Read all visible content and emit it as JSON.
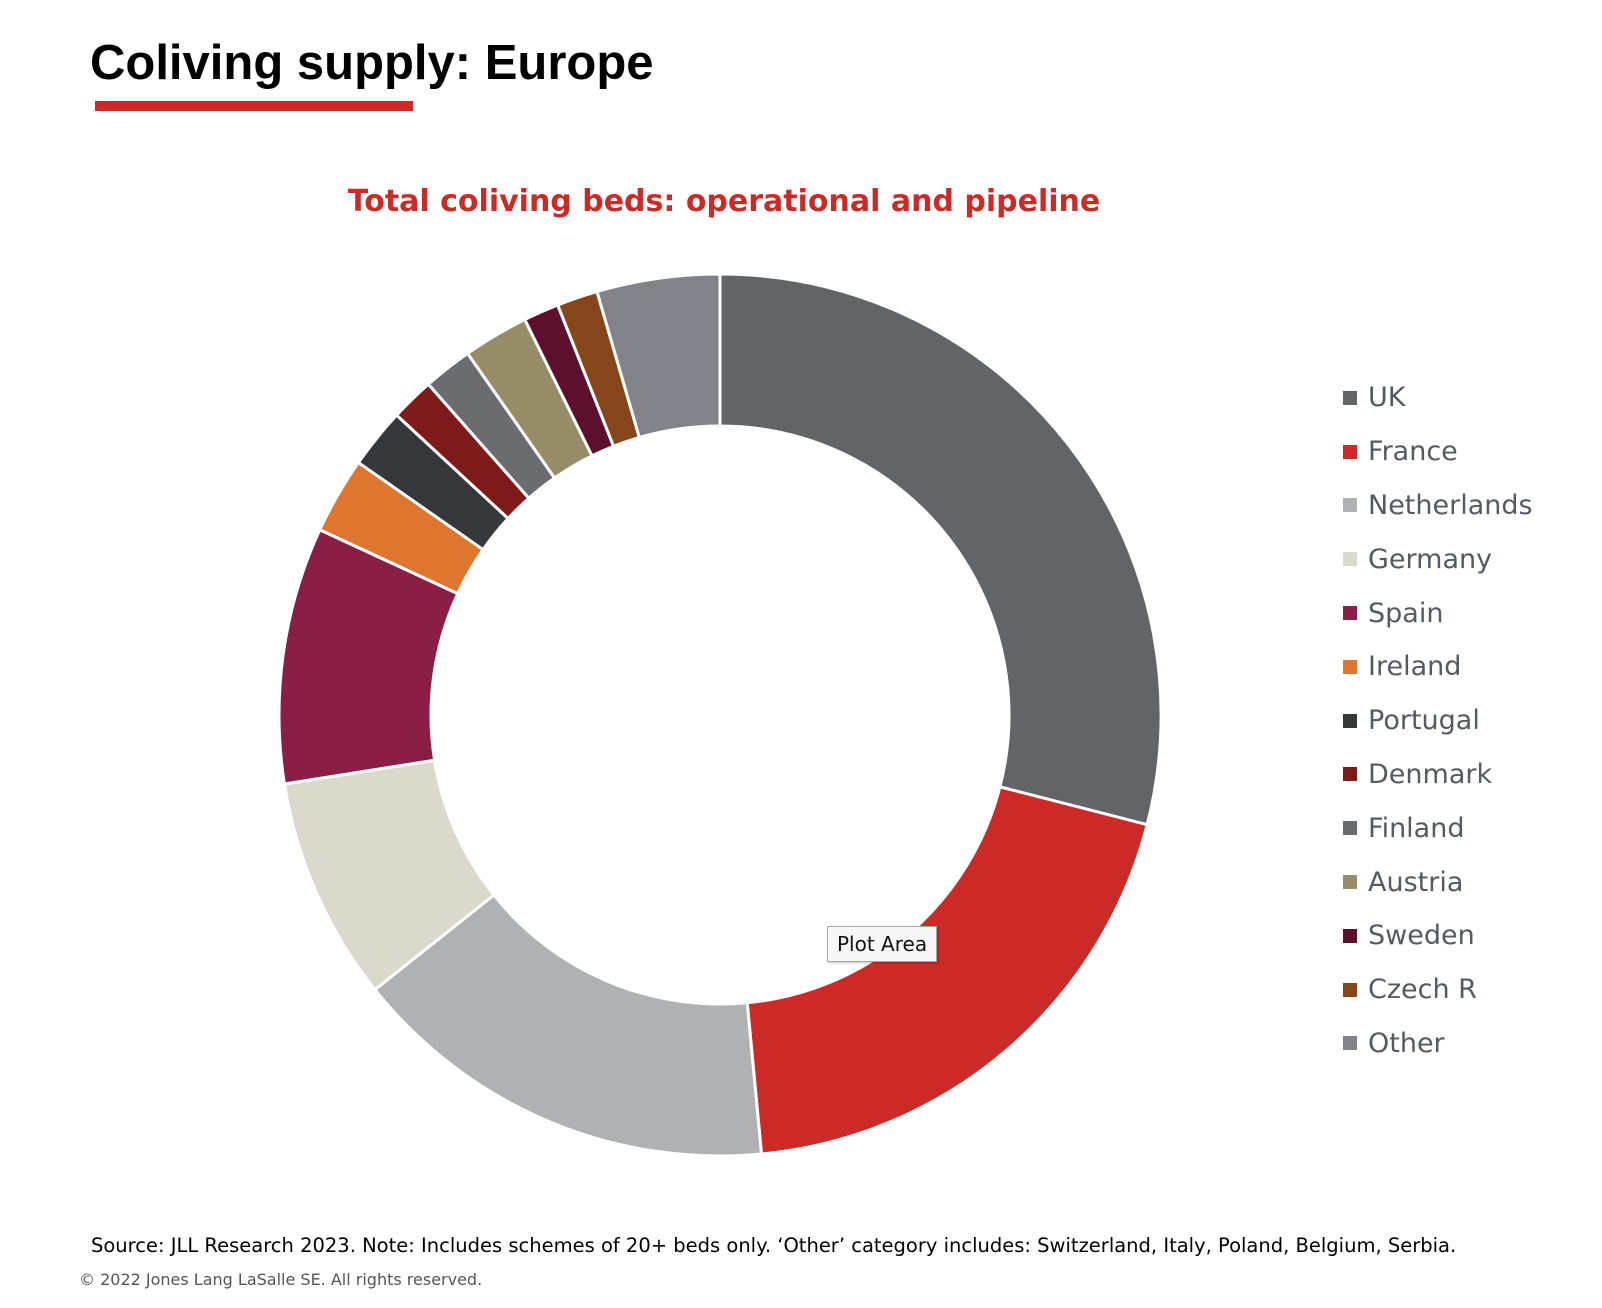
{
  "slide": {
    "title": "Coliving supply: Europe",
    "source": "Source: JLL Research 2023. Note: Includes schemes of 20+ beds only. ‘Other’ category includes: Switzerland, Italy, Poland, Belgium, Serbia.",
    "copyright": "© 2022 Jones Lang LaSalle SE. All rights reserved.",
    "tooltip": "Plot Area",
    "accent_color": "#cc2a27"
  },
  "chart_data": {
    "type": "pie",
    "variant": "donut",
    "title": "Total coliving beds: operational and pipeline",
    "unit": "share of total beds (%)",
    "legend_position": "right",
    "slices": [
      {
        "label": "UK",
        "value": 29.0,
        "color": "#636468"
      },
      {
        "label": "France",
        "value": 19.5,
        "color": "#cc2a27"
      },
      {
        "label": "Netherlands",
        "value": 15.8,
        "color": "#b0b1b3"
      },
      {
        "label": "Germany",
        "value": 8.2,
        "color": "#dbd8cc"
      },
      {
        "label": "Spain",
        "value": 9.4,
        "color": "#8b1e47"
      },
      {
        "label": "Ireland",
        "value": 2.8,
        "color": "#df762f"
      },
      {
        "label": "Portugal",
        "value": 2.2,
        "color": "#35373a"
      },
      {
        "label": "Denmark",
        "value": 1.6,
        "color": "#7f1a1a"
      },
      {
        "label": "Finland",
        "value": 1.8,
        "color": "#6a6c6f"
      },
      {
        "label": "Austria",
        "value": 2.4,
        "color": "#978c68"
      },
      {
        "label": "Sweden",
        "value": 1.3,
        "color": "#5c102e"
      },
      {
        "label": "Czech R",
        "value": 1.5,
        "color": "#86451a"
      },
      {
        "label": "Other",
        "value": 4.5,
        "color": "#818388"
      }
    ]
  }
}
